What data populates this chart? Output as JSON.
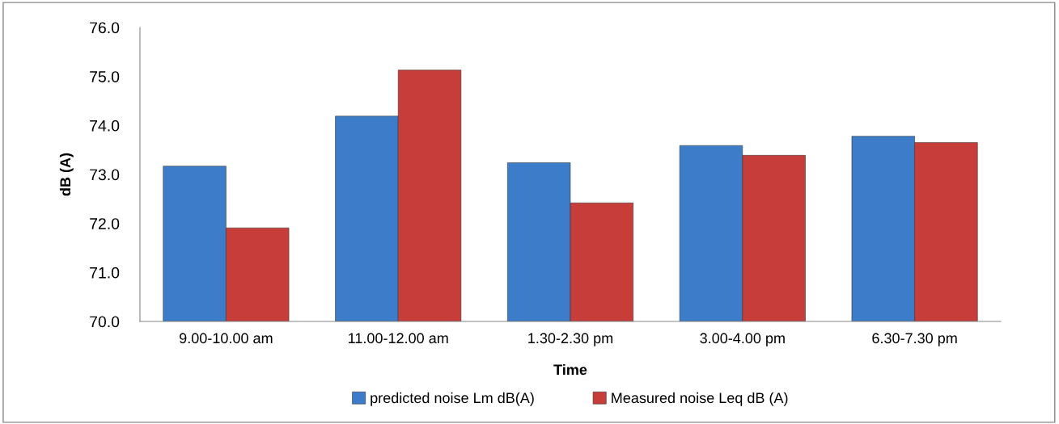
{
  "chart_data": {
    "type": "bar",
    "xlabel": "Time",
    "ylabel": "dB (A)",
    "categories": [
      "9.00-10.00 am",
      "11.00-12.00 am",
      "1.30-2.30 pm",
      "3.00-4.00 pm",
      "6.30-7.30 pm"
    ],
    "series": [
      {
        "name": "predicted noise Lm dB(A)",
        "color": "#3d7cc9",
        "values": [
          73.17,
          74.19,
          73.24,
          73.59,
          73.78
        ]
      },
      {
        "name": "Measured noise Leq dB (A)",
        "color": "#c73d3a",
        "values": [
          71.91,
          75.13,
          72.42,
          73.39,
          73.65
        ]
      }
    ],
    "ylim": [
      70,
      76
    ],
    "yticks": [
      {
        "value": 70,
        "label": "70.0"
      },
      {
        "value": 71,
        "label": "71.0"
      },
      {
        "value": 72,
        "label": "72.0"
      },
      {
        "value": 73,
        "label": "73.0"
      },
      {
        "value": 74,
        "label": "74.0"
      },
      {
        "value": 75,
        "label": "75.0"
      },
      {
        "value": 76,
        "label": "76.0"
      }
    ],
    "grid": false,
    "legend": "bottom"
  }
}
